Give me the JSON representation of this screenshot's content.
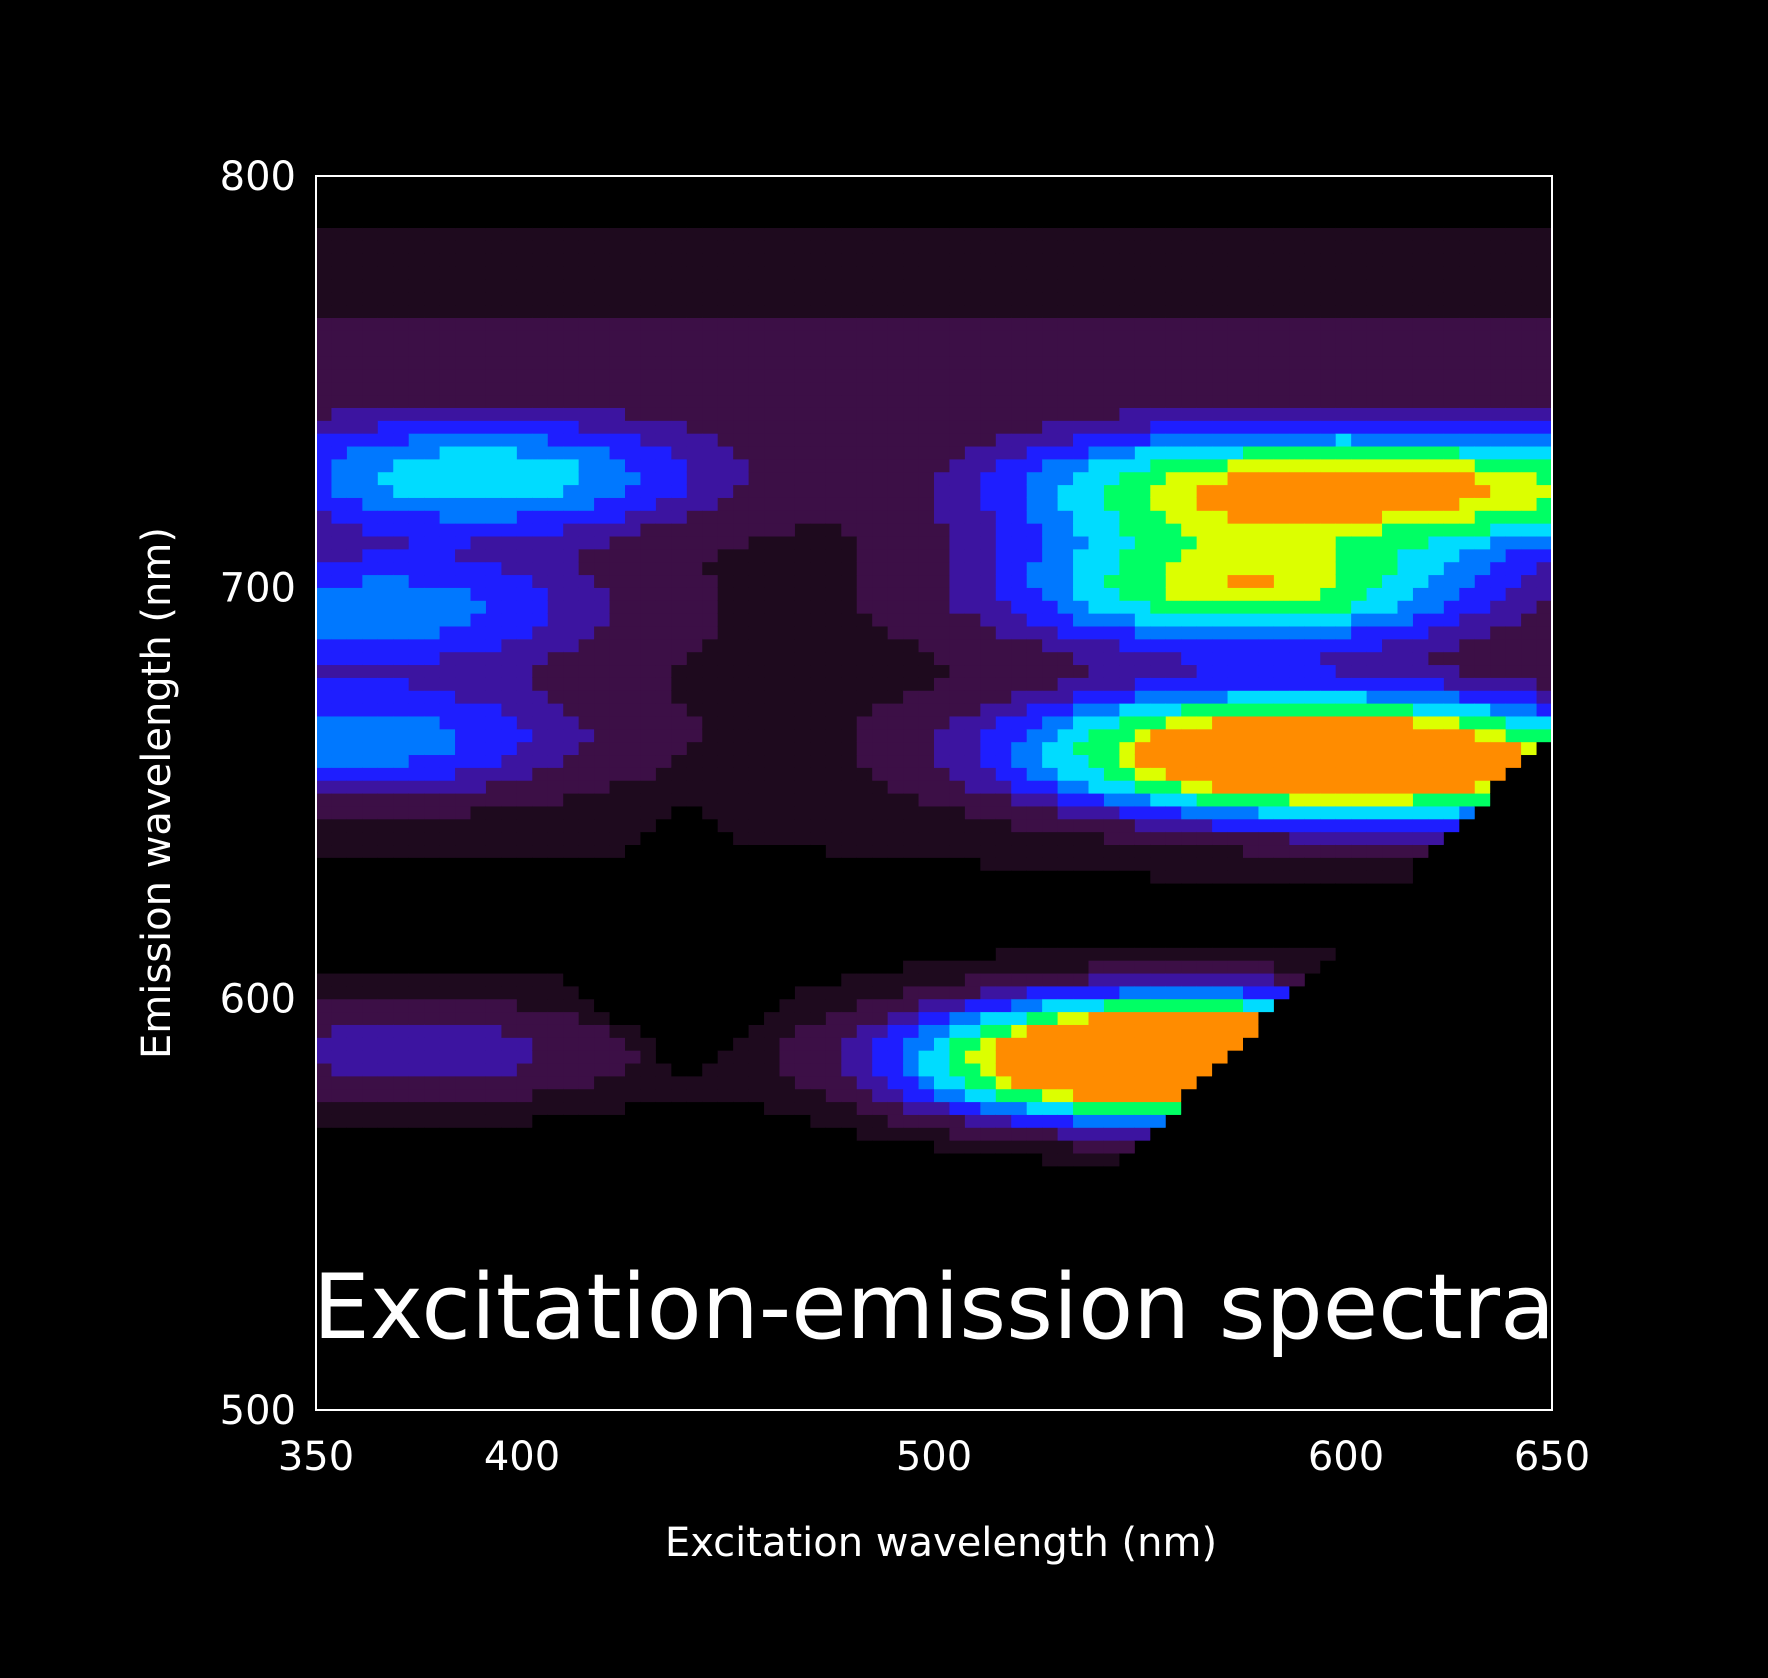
{
  "chart_data": {
    "type": "heatmap",
    "title": "Excitation-emission spectra",
    "xlabel": "Excitation wavelength (nm)",
    "ylabel": "Emission wavelength (nm)",
    "xlim": [
      350,
      650
    ],
    "ylim": [
      500,
      800
    ],
    "x_ticks": [
      350,
      400,
      500,
      600,
      650
    ],
    "y_ticks": [
      500,
      600,
      700,
      800
    ],
    "x_tick_labels": [
      "350",
      "400",
      "500",
      "600",
      "650"
    ],
    "y_tick_labels": [
      "500",
      "600",
      "700",
      "800"
    ],
    "masked_region": "emission below excitation + 15 nm (black)",
    "colormap": [
      "#000000",
      "#1e0a1e",
      "#3c0f46",
      "#3c14a0",
      "#1e1eff",
      "#0078ff",
      "#00dcff",
      "#00ff64",
      "#dcff00",
      "#ff8c00"
    ],
    "grid": false,
    "peaks": [
      {
        "excitation": 545,
        "emission": 585,
        "intensity": 0.82
      },
      {
        "excitation": 570,
        "emission": 586,
        "intensity": 0.95
      },
      {
        "excitation": 575,
        "emission": 660,
        "intensity": 0.92
      },
      {
        "excitation": 625,
        "emission": 657,
        "intensity": 0.72
      },
      {
        "excitation": 575,
        "emission": 700,
        "intensity": 0.78
      },
      {
        "excitation": 570,
        "emission": 724,
        "intensity": 0.7
      },
      {
        "excitation": 640,
        "emission": 724,
        "intensity": 0.66
      },
      {
        "excitation": 390,
        "emission": 727,
        "intensity": 0.55
      },
      {
        "excitation": 365,
        "emission": 695,
        "intensity": 0.42
      },
      {
        "excitation": 360,
        "emission": 663,
        "intensity": 0.42
      },
      {
        "excitation": 375,
        "emission": 587,
        "intensity": 0.3
      }
    ]
  }
}
